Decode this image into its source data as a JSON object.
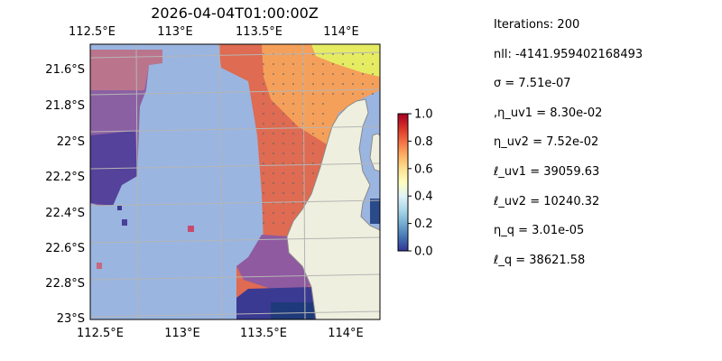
{
  "title": "2026-04-04T01:00:00Z",
  "map": {
    "lon_range": [
      112.5,
      114.2
    ],
    "lat_range": [
      -23.0,
      -21.45
    ],
    "lon_ticks": [
      112.5,
      113.0,
      113.5,
      114.0
    ],
    "lon_tick_labels": [
      "112.5°E",
      "113°E",
      "113.5°E",
      "114°E"
    ],
    "lat_ticks": [
      -21.6,
      -21.8,
      -22.0,
      -22.2,
      -22.4,
      -22.6,
      -22.8,
      -23.0
    ],
    "lat_tick_labels": [
      "21.6°S",
      "21.8°S",
      "22°S",
      "22.2°S",
      "22.4°S",
      "22.6°S",
      "22.8°S",
      "23°S"
    ],
    "gridlines": true,
    "colors": {
      "ocean": "#9ab5e0",
      "land": "#efefdf",
      "coast": "#8a8a8a",
      "grid": "#b5b5b5"
    }
  },
  "colorbar": {
    "colormap": "RdYlBu_r",
    "range": [
      0.0,
      1.0
    ],
    "ticks": [
      0.0,
      0.2,
      0.4,
      0.6,
      0.8,
      1.0
    ],
    "tick_labels": [
      "0.0",
      "0.2",
      "0.4",
      "0.6",
      "0.8",
      "1.0"
    ]
  },
  "chart_data": {
    "type": "heatmap",
    "title": "2026-04-04T01:00:00Z",
    "xlabel": "",
    "ylabel": "",
    "xlim": [
      112.5,
      114.2
    ],
    "ylim": [
      -23.0,
      -21.45
    ],
    "colorbar_range": [
      0.0,
      1.0
    ],
    "grid": true
  },
  "params": {
    "iterations": "Iterations: 200",
    "nll": "nll: -4141.959402168493",
    "sigma": "σ = 7.51e-07",
    "eta_uv1": ",η_uv1 = 8.30e-02",
    "eta_uv2": "η_uv2 = 7.52e-02",
    "ell_uv1": "ℓ_uv1 = 39059.63",
    "ell_uv2": "ℓ_uv2 = 10240.32",
    "eta_q": "η_q = 3.01e-05",
    "ell_q": "ℓ_q = 38621.58"
  }
}
